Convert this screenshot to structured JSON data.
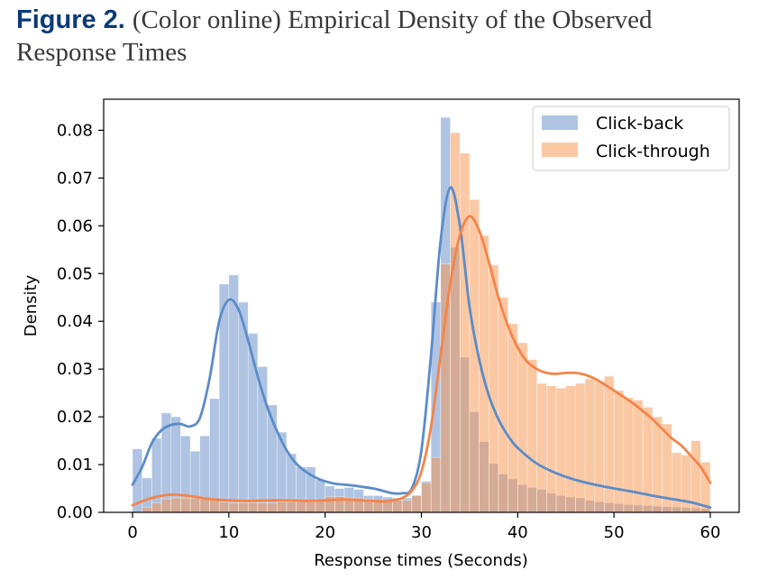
{
  "caption": {
    "figure_label": "Figure 2.",
    "text": "(Color online) Empirical Density of the Observed Response Times"
  },
  "chart_data": {
    "type": "bar",
    "xlabel": "Response times (Seconds)",
    "ylabel": "Density",
    "xlim": [
      -3,
      63
    ],
    "ylim": [
      0,
      0.0865
    ],
    "xticks": [
      0,
      10,
      20,
      30,
      40,
      50,
      60
    ],
    "yticks": [
      0.0,
      0.01,
      0.02,
      0.03,
      0.04,
      0.05,
      0.06,
      0.07,
      0.08
    ],
    "ytick_labels": [
      "0.00",
      "0.01",
      "0.02",
      "0.03",
      "0.04",
      "0.05",
      "0.06",
      "0.07",
      "0.08"
    ],
    "legend_position": "top-right",
    "bin_width": 1,
    "x": [
      0.5,
      1.5,
      2.5,
      3.5,
      4.5,
      5.5,
      6.5,
      7.5,
      8.5,
      9.5,
      10.5,
      11.5,
      12.5,
      13.5,
      14.5,
      15.5,
      16.5,
      17.5,
      18.5,
      19.5,
      20.5,
      21.5,
      22.5,
      23.5,
      24.5,
      25.5,
      26.5,
      27.5,
      28.5,
      29.5,
      30.5,
      31.5,
      32.5,
      33.5,
      34.5,
      35.5,
      36.5,
      37.5,
      38.5,
      39.5,
      40.5,
      41.5,
      42.5,
      43.5,
      44.5,
      45.5,
      46.5,
      47.5,
      48.5,
      49.5,
      50.5,
      51.5,
      52.5,
      53.5,
      54.5,
      55.5,
      56.5,
      57.5,
      58.5,
      59.5
    ],
    "series": [
      {
        "name": "Click-back",
        "color": "#6d94cc",
        "histogram": [
          0.0133,
          0.0072,
          0.0155,
          0.0208,
          0.02,
          0.016,
          0.0128,
          0.016,
          0.0238,
          0.0478,
          0.0497,
          0.044,
          0.0375,
          0.0305,
          0.0225,
          0.0168,
          0.0123,
          0.0095,
          0.0095,
          0.0068,
          0.0055,
          0.005,
          0.0052,
          0.0048,
          0.0035,
          0.0035,
          0.0032,
          0.003,
          0.003,
          0.0036,
          0.0065,
          0.044,
          0.0827,
          0.0555,
          0.0325,
          0.021,
          0.0148,
          0.0102,
          0.008,
          0.007,
          0.0058,
          0.0052,
          0.0048,
          0.004,
          0.0035,
          0.0032,
          0.003,
          0.0025,
          0.0022,
          0.002,
          0.0018,
          0.0016,
          0.0015,
          0.0014,
          0.0013,
          0.0012,
          0.0011,
          0.001,
          0.0009,
          0.0008
        ],
        "kde": {
          "x": [
            0,
            1,
            2,
            3,
            4,
            5,
            6,
            7,
            8,
            9,
            10,
            11,
            12,
            13,
            14,
            15,
            16,
            17,
            18,
            19,
            20,
            21,
            22,
            23,
            24,
            25,
            26,
            27,
            28,
            29,
            30,
            31,
            32,
            33,
            34,
            35,
            36,
            37,
            38,
            39,
            40,
            42,
            44,
            46,
            48,
            50,
            52,
            54,
            56,
            58,
            60
          ],
          "y": [
            0.0058,
            0.0095,
            0.0145,
            0.0172,
            0.0183,
            0.0185,
            0.018,
            0.0198,
            0.028,
            0.04,
            0.0445,
            0.0425,
            0.036,
            0.0285,
            0.022,
            0.017,
            0.013,
            0.0102,
            0.0085,
            0.0073,
            0.0065,
            0.006,
            0.0058,
            0.0056,
            0.0053,
            0.005,
            0.0045,
            0.004,
            0.004,
            0.005,
            0.013,
            0.033,
            0.057,
            0.068,
            0.06,
            0.043,
            0.032,
            0.0245,
            0.0195,
            0.016,
            0.0135,
            0.0102,
            0.0082,
            0.0068,
            0.0058,
            0.005,
            0.0043,
            0.0035,
            0.0028,
            0.0021,
            0.001
          ]
        }
      },
      {
        "name": "Click-through",
        "color": "#f7924a",
        "histogram": [
          0.0,
          0.001,
          0.002,
          0.0028,
          0.003,
          0.003,
          0.003,
          0.0028,
          0.0025,
          0.0022,
          0.002,
          0.002,
          0.002,
          0.002,
          0.002,
          0.0022,
          0.0022,
          0.0022,
          0.0022,
          0.0025,
          0.0033,
          0.0033,
          0.003,
          0.003,
          0.0028,
          0.0025,
          0.0025,
          0.0025,
          0.0025,
          0.0035,
          0.0062,
          0.0115,
          0.052,
          0.0795,
          0.0752,
          0.0655,
          0.058,
          0.0518,
          0.045,
          0.0395,
          0.0355,
          0.032,
          0.027,
          0.0265,
          0.026,
          0.0265,
          0.027,
          0.028,
          0.0275,
          0.0285,
          0.0255,
          0.024,
          0.0235,
          0.022,
          0.02,
          0.0185,
          0.0125,
          0.012,
          0.015,
          0.0105
        ],
        "kde": {
          "x": [
            0,
            2,
            4,
            6,
            8,
            10,
            12,
            14,
            16,
            18,
            20,
            22,
            24,
            26,
            27,
            28,
            29,
            30,
            31,
            32,
            33,
            34,
            35,
            36,
            37,
            38,
            39,
            40,
            41,
            42,
            43,
            44,
            45,
            46,
            47,
            48,
            49,
            50,
            51,
            52,
            53,
            54,
            55,
            56,
            57,
            58,
            59,
            60
          ],
          "y": [
            0.0015,
            0.003,
            0.0037,
            0.0034,
            0.0028,
            0.0025,
            0.0024,
            0.0025,
            0.0025,
            0.0024,
            0.0025,
            0.0027,
            0.0025,
            0.0023,
            0.0025,
            0.003,
            0.0045,
            0.0085,
            0.018,
            0.033,
            0.048,
            0.058,
            0.062,
            0.059,
            0.0525,
            0.045,
            0.039,
            0.0345,
            0.0315,
            0.03,
            0.0292,
            0.029,
            0.0292,
            0.0292,
            0.0288,
            0.028,
            0.0268,
            0.0255,
            0.0242,
            0.0228,
            0.0212,
            0.0195,
            0.0175,
            0.0155,
            0.014,
            0.0118,
            0.0095,
            0.0062
          ]
        }
      }
    ]
  }
}
